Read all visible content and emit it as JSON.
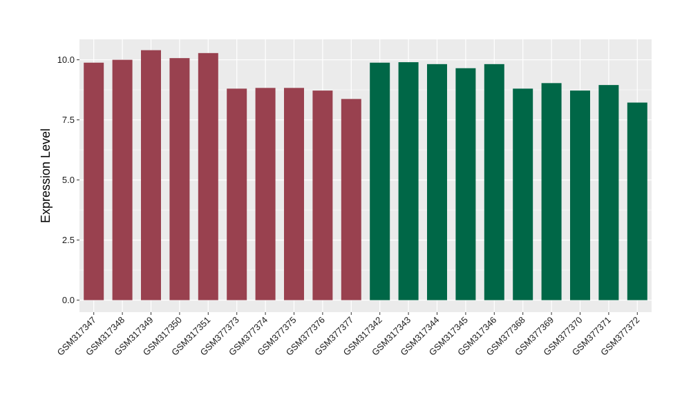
{
  "chart_data": {
    "type": "bar",
    "title": "",
    "xlabel": "",
    "ylabel": "Expression Level",
    "ylim": [
      -0.5,
      10.85
    ],
    "yticks": [
      0.0,
      2.5,
      5.0,
      7.5,
      10.0
    ],
    "ytick_labels": [
      "0.0",
      "2.5",
      "5.0",
      "7.5",
      "10.0"
    ],
    "grid": true,
    "legend": "none",
    "panel_background": "#EBEBEB",
    "gridline_color": "#FFFFFF",
    "categories": [
      "GSM317347",
      "GSM317348",
      "GSM317349",
      "GSM317350",
      "GSM317351",
      "GSM377373",
      "GSM377374",
      "GSM377375",
      "GSM377376",
      "GSM377377",
      "GSM317342",
      "GSM317343",
      "GSM317344",
      "GSM317345",
      "GSM317346",
      "GSM377368",
      "GSM377369",
      "GSM377370",
      "GSM377371",
      "GSM377372"
    ],
    "values": [
      9.88,
      10.0,
      10.4,
      10.07,
      10.28,
      8.8,
      8.83,
      8.83,
      8.72,
      8.37,
      9.88,
      9.9,
      9.82,
      9.65,
      9.82,
      8.8,
      9.03,
      8.72,
      8.95,
      8.22
    ],
    "bar_colors": [
      "#99414F",
      "#99414F",
      "#99414F",
      "#99414F",
      "#99414F",
      "#99414F",
      "#99414F",
      "#99414F",
      "#99414F",
      "#99414F",
      "#006747",
      "#006747",
      "#006747",
      "#006747",
      "#006747",
      "#006747",
      "#006747",
      "#006747",
      "#006747",
      "#006747"
    ]
  }
}
